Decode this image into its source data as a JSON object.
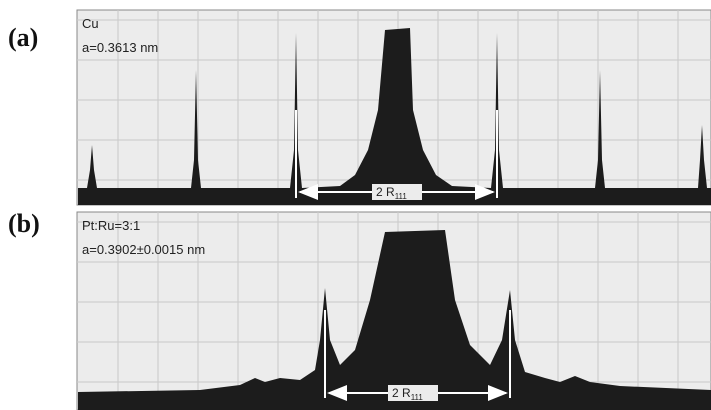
{
  "panels": [
    {
      "label": "(a)",
      "sample": "Cu",
      "lattice": "a=0.3613 nm",
      "distance": {
        "text": "2 R",
        "subscript": "111"
      }
    },
    {
      "label": "(b)",
      "sample": "Pt:Ru=3:1",
      "lattice": "a=0.3902±0.0015 nm",
      "distance": {
        "text": "2 R",
        "subscript": "111"
      }
    }
  ]
}
